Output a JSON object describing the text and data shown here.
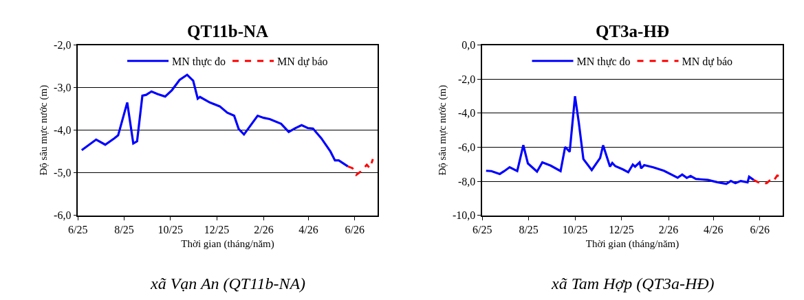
{
  "chart_data": [
    {
      "type": "line",
      "title": "QT11b-NA",
      "xlabel": "Thời gian (tháng/năm)",
      "ylabel": "Độ sâu mực nước (m)",
      "annotations": [
        "xã Vạn An (QT11b-NA)"
      ],
      "grid": "y",
      "legend": "top",
      "xlim": [
        "2025-06-01",
        "2026-07-01"
      ],
      "xticks": [
        {
          "value": "2025-06-01",
          "label": "6/25"
        },
        {
          "value": "2025-08-01",
          "label": "8/25"
        },
        {
          "value": "2025-10-01",
          "label": "10/25"
        },
        {
          "value": "2025-12-01",
          "label": "12/25"
        },
        {
          "value": "2026-02-01",
          "label": "2/26"
        },
        {
          "value": "2026-04-01",
          "label": "4/26"
        },
        {
          "value": "2026-06-01",
          "label": "6/26"
        }
      ],
      "ylim": [
        -6,
        -2
      ],
      "yticks": [
        {
          "value": -6,
          "label": "-6,0"
        },
        {
          "value": -5,
          "label": "-5,0"
        },
        {
          "value": -4,
          "label": "-4,0"
        },
        {
          "value": -3,
          "label": "-3,0"
        },
        {
          "value": -2,
          "label": "-2,0"
        }
      ],
      "series": [
        {
          "name": "MN thực đo",
          "color": "#0000ff",
          "line_style": "solid",
          "x": [
            "2025-06-06",
            "2025-06-25",
            "2025-07-07",
            "2025-07-19",
            "2025-07-24",
            "2025-08-05",
            "2025-08-13",
            "2025-08-18",
            "2025-08-25",
            "2025-08-30",
            "2025-09-06",
            "2025-09-14",
            "2025-09-24",
            "2025-10-03",
            "2025-10-13",
            "2025-10-23",
            "2025-10-31",
            "2025-11-06",
            "2025-11-09",
            "2025-11-22",
            "2025-12-05",
            "2025-12-15",
            "2025-12-24",
            "2025-12-30",
            "2026-01-06",
            "2026-01-24",
            "2026-02-01",
            "2026-02-09",
            "2026-02-24",
            "2026-03-06",
            "2026-03-14",
            "2026-03-23",
            "2026-03-31",
            "2026-04-07",
            "2026-04-18",
            "2026-04-30",
            "2026-05-06",
            "2026-05-11",
            "2026-05-23"
          ],
          "values": [
            -4.47,
            -4.22,
            -4.34,
            -4.19,
            -4.12,
            -3.35,
            -4.31,
            -4.26,
            -3.19,
            -3.17,
            -3.09,
            -3.15,
            -3.21,
            -3.06,
            -2.82,
            -2.7,
            -2.84,
            -3.26,
            -3.22,
            -3.35,
            -3.44,
            -3.59,
            -3.66,
            -3.97,
            -4.1,
            -3.66,
            -3.71,
            -3.74,
            -3.85,
            -4.04,
            -3.96,
            -3.88,
            -3.95,
            -3.96,
            -4.19,
            -4.5,
            -4.71,
            -4.71,
            -4.85
          ]
        },
        {
          "name": "MN dự báo",
          "color": "#ff0000",
          "line_style": "dashed",
          "x": [
            "2026-05-23",
            "2026-05-29",
            "2026-06-03",
            "2026-06-09",
            "2026-06-17",
            "2026-06-21",
            "2026-06-25"
          ],
          "values": [
            -4.85,
            -4.89,
            -5.05,
            -4.97,
            -4.81,
            -4.89,
            -4.68
          ]
        }
      ]
    },
    {
      "type": "line",
      "title": "QT3a-HĐ",
      "xlabel": "Thời gian (tháng/năm)",
      "ylabel": "Độ sâu mực nước (m)",
      "annotations": [
        "xã Tam Hợp (QT3a-HĐ)"
      ],
      "grid": "y",
      "legend": "top",
      "xlim": [
        "2025-06-01",
        "2026-07-01"
      ],
      "xticks": [
        {
          "value": "2025-06-01",
          "label": "6/25"
        },
        {
          "value": "2025-08-01",
          "label": "8/25"
        },
        {
          "value": "2025-10-01",
          "label": "10/25"
        },
        {
          "value": "2025-12-01",
          "label": "12/25"
        },
        {
          "value": "2026-02-01",
          "label": "2/26"
        },
        {
          "value": "2026-04-01",
          "label": "4/26"
        },
        {
          "value": "2026-06-01",
          "label": "6/26"
        }
      ],
      "ylim": [
        -10,
        0
      ],
      "yticks": [
        {
          "value": -10,
          "label": "-10,0"
        },
        {
          "value": -8,
          "label": "-8,0"
        },
        {
          "value": -6,
          "label": "-6,0"
        },
        {
          "value": -4,
          "label": "-4,0"
        },
        {
          "value": -2,
          "label": "-2,0"
        },
        {
          "value": 0,
          "label": "0,0"
        }
      ],
      "series": [
        {
          "name": "MN thực đo",
          "color": "#0000ff",
          "line_style": "solid",
          "x": [
            "2025-06-06",
            "2025-06-13",
            "2025-06-24",
            "2025-06-30",
            "2025-07-07",
            "2025-07-17",
            "2025-07-25",
            "2025-07-31",
            "2025-08-12",
            "2025-08-19",
            "2025-08-30",
            "2025-09-12",
            "2025-09-18",
            "2025-09-24",
            "2025-10-01",
            "2025-10-06",
            "2025-10-12",
            "2025-10-23",
            "2025-11-03",
            "2025-11-07",
            "2025-11-16",
            "2025-11-19",
            "2025-11-23",
            "2025-12-03",
            "2025-12-10",
            "2025-12-16",
            "2025-12-19",
            "2025-12-25",
            "2025-12-27",
            "2025-12-31",
            "2026-01-12",
            "2026-01-26",
            "2026-02-13",
            "2026-02-19",
            "2026-02-25",
            "2026-03-02",
            "2026-03-09",
            "2026-03-25",
            "2026-04-06",
            "2026-04-18",
            "2026-04-24",
            "2026-04-30",
            "2026-05-07",
            "2026-05-16",
            "2026-05-18",
            "2026-05-24"
          ],
          "values": [
            -7.38,
            -7.4,
            -7.57,
            -7.4,
            -7.17,
            -7.4,
            -5.88,
            -6.95,
            -7.43,
            -6.89,
            -7.08,
            -7.4,
            -5.98,
            -6.27,
            -3.01,
            -4.56,
            -6.69,
            -7.34,
            -6.63,
            -5.89,
            -7.14,
            -6.92,
            -7.11,
            -7.3,
            -7.47,
            -7.02,
            -7.14,
            -6.89,
            -7.24,
            -7.05,
            -7.18,
            -7.38,
            -7.79,
            -7.6,
            -7.8,
            -7.69,
            -7.86,
            -7.92,
            -8.05,
            -8.15,
            -7.98,
            -8.11,
            -7.98,
            -8.06,
            -7.73,
            -7.92
          ]
        },
        {
          "name": "MN dự báo",
          "color": "#ff0000",
          "line_style": "dashed",
          "x": [
            "2026-05-24",
            "2026-06-03",
            "2026-06-10",
            "2026-06-14",
            "2026-06-18",
            "2026-06-24",
            "2026-07-01"
          ],
          "values": [
            -7.92,
            -8.15,
            -8.11,
            -7.96,
            -8.05,
            -7.66,
            -7.73
          ]
        }
      ]
    }
  ]
}
